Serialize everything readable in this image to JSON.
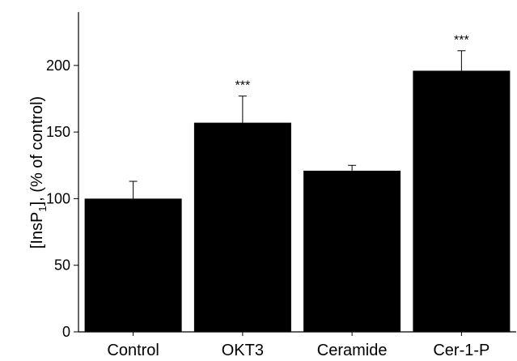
{
  "chart_data": {
    "type": "bar",
    "categories": [
      "Control",
      "OKT3",
      "Ceramide",
      "Cer-1-P"
    ],
    "values": [
      100,
      157,
      121,
      196
    ],
    "errors": [
      13,
      20,
      4,
      15
    ],
    "annotations": [
      "",
      "***",
      "",
      "***"
    ],
    "ylabel": {
      "prefix": "[InsP",
      "subscript": "1",
      "suffix": "], (% of control)"
    },
    "xlabel": "",
    "title": "",
    "ylim": [
      0,
      240
    ],
    "yticks": [
      0,
      50,
      100,
      150,
      200
    ],
    "ytick_labels": [
      "0",
      "50",
      "100",
      "150",
      "200"
    ],
    "grid": false,
    "legend": "none",
    "bar_color": "#000000",
    "axis_color": "#000000"
  }
}
